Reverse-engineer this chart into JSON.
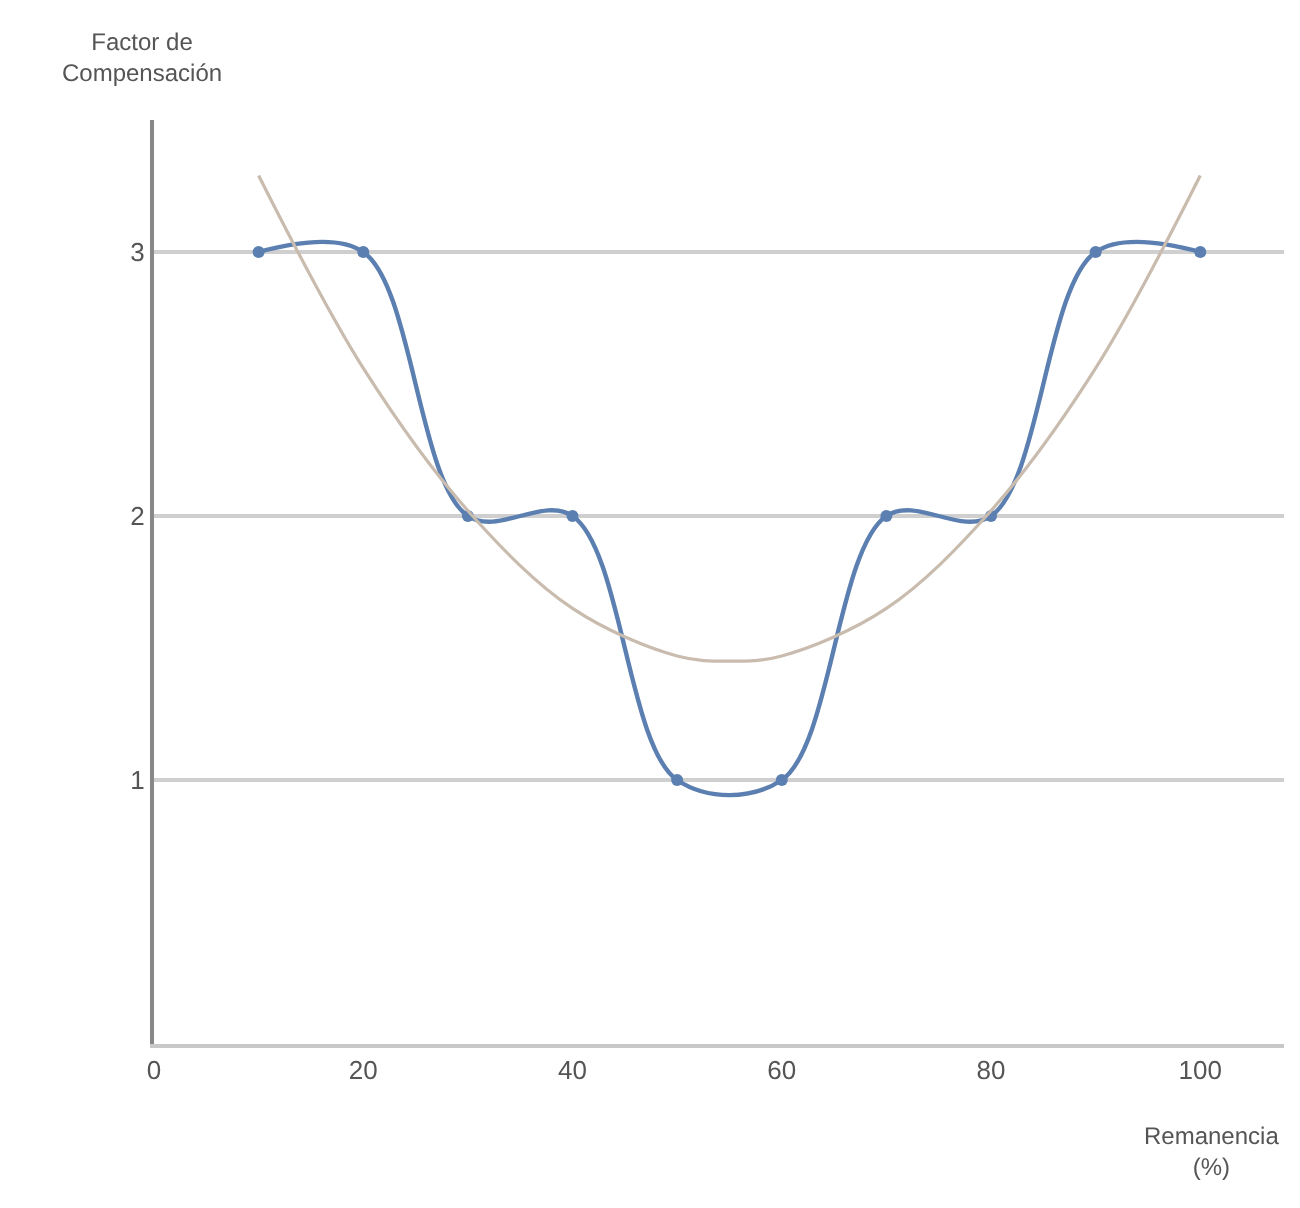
{
  "chart_data": {
    "type": "line",
    "ylabel": "Factor de\nCompensación",
    "xlabel": "Remanencia\n(%)",
    "x": [
      10,
      20,
      30,
      40,
      50,
      60,
      70,
      80,
      90,
      100
    ],
    "series": [
      {
        "color": "#5b7fb0",
        "values": [
          3,
          3,
          2,
          2,
          1,
          1,
          2,
          2,
          3,
          3
        ],
        "marker": "circle"
      },
      {
        "color": "#c9bcae",
        "x": [
          10,
          20,
          30,
          40,
          50,
          55,
          60,
          70,
          80,
          90,
          100
        ],
        "values": [
          3.29,
          2.56,
          2.02,
          1.65,
          1.47,
          1.45,
          1.47,
          1.65,
          2.02,
          2.56,
          3.29
        ],
        "marker": "none"
      }
    ],
    "xlim": [
      0,
      108
    ],
    "ylim": [
      0,
      3.5
    ],
    "xticks": [
      0,
      20,
      40,
      60,
      80,
      100
    ],
    "yticks": [
      1,
      2,
      3
    ],
    "grid": "y"
  }
}
